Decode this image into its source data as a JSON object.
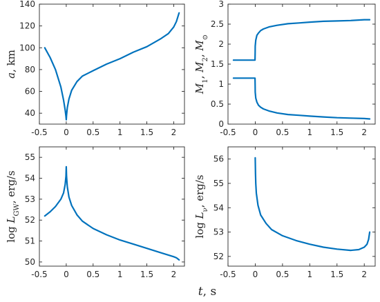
{
  "figure": {
    "xlabel_parts": [
      {
        "text": "t",
        "style": "italic"
      },
      {
        "text": ", s",
        "style": "normal"
      }
    ]
  },
  "chart_data": [
    {
      "type": "line",
      "xlim": [
        -0.5,
        2.2
      ],
      "ylim": [
        30,
        140
      ],
      "xticks": [
        -0.5,
        0,
        0.5,
        1,
        1.5,
        2
      ],
      "xtick_labels": [
        "-0.5",
        "0",
        "0.5",
        "1",
        "1.5",
        "2"
      ],
      "yticks": [
        40,
        60,
        80,
        100,
        120,
        140
      ],
      "ytick_labels": [
        "40",
        "60",
        "80",
        "100",
        "120",
        "140"
      ],
      "ylabel_parts": [
        {
          "text": "a",
          "style": "italic"
        },
        {
          "text": ", km",
          "style": "normal"
        }
      ],
      "series": [
        {
          "x": [
            -0.4,
            -0.3,
            -0.2,
            -0.1,
            -0.05,
            -0.02,
            -0.005,
            0,
            0.005,
            0.02,
            0.05,
            0.1,
            0.2,
            0.3,
            0.5,
            0.75,
            1.0,
            1.25,
            1.5,
            1.75,
            1.9,
            2.0,
            2.05,
            2.1
          ],
          "y": [
            100,
            91,
            80,
            64,
            52,
            43,
            37,
            34,
            38,
            45,
            53,
            61,
            69,
            74,
            79,
            85,
            90,
            96,
            101,
            108,
            113,
            119,
            124,
            132
          ]
        }
      ]
    },
    {
      "type": "line",
      "xlim": [
        -0.5,
        2.2
      ],
      "ylim": [
        0,
        3
      ],
      "xticks": [
        -0.5,
        0,
        0.5,
        1,
        1.5,
        2
      ],
      "xtick_labels": [
        "-0.5",
        "0",
        "0.5",
        "1",
        "1.5",
        "2"
      ],
      "yticks": [
        0,
        0.5,
        1,
        1.5,
        2,
        2.5,
        3
      ],
      "ytick_labels": [
        "0",
        "0.5",
        "1",
        "1.5",
        "2",
        "2.5",
        "3"
      ],
      "ylabel_parts": [
        {
          "text": "M",
          "style": "italic"
        },
        {
          "text": "1",
          "style": "sub"
        },
        {
          "text": ", ",
          "style": "normal"
        },
        {
          "text": "M",
          "style": "italic"
        },
        {
          "text": "2",
          "style": "sub"
        },
        {
          "text": ", ",
          "style": "normal"
        },
        {
          "text": "M",
          "style": "italic"
        },
        {
          "text": "⊙",
          "style": "sub"
        }
      ],
      "series": [
        {
          "x": [
            -0.4,
            -0.005,
            -0.002,
            0.0,
            0.01,
            0.03,
            0.06,
            0.1,
            0.15,
            0.25,
            0.4,
            0.6,
            0.8,
            1.0,
            1.25,
            1.5,
            1.75,
            2.0,
            2.1
          ],
          "y": [
            1.6,
            1.6,
            1.8,
            1.95,
            2.1,
            2.22,
            2.28,
            2.34,
            2.38,
            2.43,
            2.47,
            2.51,
            2.53,
            2.55,
            2.57,
            2.58,
            2.59,
            2.61,
            2.61
          ]
        },
        {
          "x": [
            -0.4,
            -0.005,
            -0.002,
            0.0,
            0.01,
            0.03,
            0.06,
            0.1,
            0.15,
            0.25,
            0.4,
            0.6,
            0.8,
            1.0,
            1.25,
            1.5,
            1.75,
            2.0,
            2.1
          ],
          "y": [
            1.15,
            1.15,
            0.95,
            0.8,
            0.65,
            0.55,
            0.47,
            0.42,
            0.38,
            0.33,
            0.28,
            0.24,
            0.22,
            0.2,
            0.18,
            0.16,
            0.15,
            0.14,
            0.13
          ]
        }
      ]
    },
    {
      "type": "line",
      "xlim": [
        -0.5,
        2.2
      ],
      "ylim": [
        49.8,
        55.5
      ],
      "xticks": [
        -0.5,
        0,
        0.5,
        1,
        1.5,
        2
      ],
      "xtick_labels": [
        "-0.5",
        "0",
        "0.5",
        "1",
        "1.5",
        "2"
      ],
      "yticks": [
        50,
        51,
        52,
        53,
        54,
        55
      ],
      "ytick_labels": [
        "50",
        "51",
        "52",
        "53",
        "54",
        "55"
      ],
      "ylabel_parts": [
        {
          "text": "log ",
          "style": "normal"
        },
        {
          "text": "L",
          "style": "italic"
        },
        {
          "text": "GW",
          "style": "sub"
        },
        {
          "text": ", erg/s",
          "style": "normal"
        }
      ],
      "series": [
        {
          "x": [
            -0.4,
            -0.3,
            -0.2,
            -0.1,
            -0.05,
            -0.02,
            -0.005,
            0,
            0.005,
            0.02,
            0.05,
            0.1,
            0.2,
            0.3,
            0.5,
            0.75,
            1.0,
            1.25,
            1.5,
            1.75,
            2.0,
            2.05,
            2.1
          ],
          "y": [
            52.2,
            52.4,
            52.65,
            53.0,
            53.3,
            53.7,
            54.1,
            54.55,
            54.1,
            53.6,
            53.1,
            52.7,
            52.25,
            51.95,
            51.6,
            51.3,
            51.05,
            50.85,
            50.65,
            50.45,
            50.25,
            50.2,
            50.1
          ]
        }
      ]
    },
    {
      "type": "line",
      "xlim": [
        -0.5,
        2.2
      ],
      "ylim": [
        51.6,
        56.5
      ],
      "xticks": [
        -0.5,
        0,
        0.5,
        1,
        1.5,
        2
      ],
      "xtick_labels": [
        "-0.5",
        "0",
        "0.5",
        "1",
        "1.5",
        "2"
      ],
      "yticks": [
        52,
        53,
        54,
        55,
        56
      ],
      "ytick_labels": [
        "52",
        "53",
        "54",
        "55",
        "56"
      ],
      "ylabel_parts": [
        {
          "text": "log ",
          "style": "normal"
        },
        {
          "text": "L",
          "style": "italic"
        },
        {
          "text": "ν",
          "style": "sub"
        },
        {
          "text": ", erg/s",
          "style": "normal"
        }
      ],
      "series": [
        {
          "x": [
            0,
            0.005,
            0.01,
            0.02,
            0.05,
            0.1,
            0.2,
            0.3,
            0.5,
            0.75,
            1.0,
            1.25,
            1.5,
            1.75,
            1.9,
            2.0,
            2.05,
            2.08,
            2.1
          ],
          "y": [
            56.05,
            55.4,
            55.0,
            54.6,
            54.1,
            53.7,
            53.35,
            53.1,
            52.85,
            52.65,
            52.5,
            52.38,
            52.3,
            52.25,
            52.28,
            52.38,
            52.5,
            52.7,
            53.0
          ]
        }
      ]
    }
  ],
  "colors": {
    "series": "#0072BD",
    "axis": "#262626"
  }
}
